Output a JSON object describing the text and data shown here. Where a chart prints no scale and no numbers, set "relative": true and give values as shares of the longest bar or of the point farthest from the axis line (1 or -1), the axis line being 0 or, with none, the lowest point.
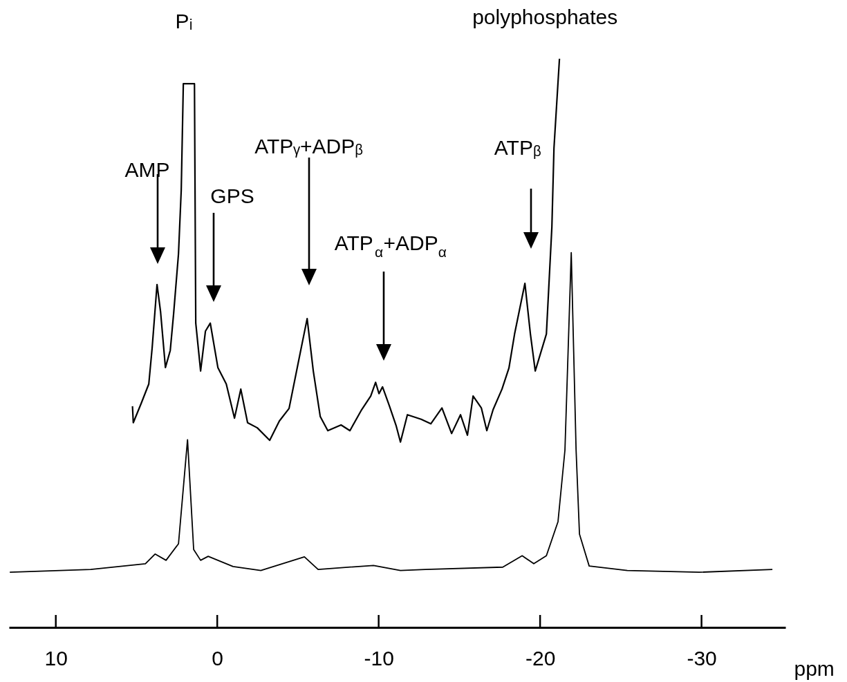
{
  "chart_data": {
    "type": "line",
    "relative": true,
    "xlabel": "ppm",
    "xlim": [
      12.9,
      -35.2
    ],
    "xticks": [
      10,
      0,
      -10,
      -20,
      -30
    ],
    "grid": false,
    "marker": "none",
    "line_style": "solid",
    "series": [
      {
        "color": "#000000",
        "x": [
          5.25,
          5.2,
          4.71,
          4.24,
          4.03,
          3.73,
          3.51,
          3.21,
          2.91,
          2.7,
          2.4,
          2.23,
          2.1,
          1.78,
          1.41,
          1.33,
          1.03,
          0.73,
          0.43,
          -0.04,
          -0.56,
          -1.07,
          -1.46,
          -1.88,
          -2.48,
          -3.25,
          -3.85,
          -4.45,
          -5.05,
          -5.57,
          -5.95,
          -6.38,
          -6.85,
          -7.67,
          -8.22,
          -8.95,
          -9.51,
          -9.81,
          -10.02,
          -10.24,
          -10.66,
          -11.09,
          -11.35,
          -11.78,
          -12.63,
          -13.23,
          -13.92,
          -14.52,
          -15.07,
          -15.5,
          -15.85,
          -16.36,
          -16.7,
          -17.09,
          -17.64,
          -18.07,
          -18.42,
          -19.06,
          -19.4,
          -19.7,
          -20.39,
          -20.73,
          -20.86,
          -21.2
        ],
        "values": [
          0.389,
          0.36,
          0.394,
          0.428,
          0.492,
          0.603,
          0.555,
          0.457,
          0.487,
          0.552,
          0.657,
          0.769,
          0.956,
          0.956,
          0.956,
          0.535,
          0.451,
          0.521,
          0.535,
          0.457,
          0.428,
          0.368,
          0.419,
          0.36,
          0.351,
          0.329,
          0.363,
          0.385,
          0.47,
          0.543,
          0.451,
          0.371,
          0.346,
          0.356,
          0.346,
          0.383,
          0.407,
          0.431,
          0.411,
          0.423,
          0.39,
          0.354,
          0.326,
          0.374,
          0.366,
          0.358,
          0.386,
          0.341,
          0.374,
          0.338,
          0.407,
          0.386,
          0.346,
          0.383,
          0.419,
          0.456,
          0.516,
          0.605,
          0.516,
          0.451,
          0.516,
          0.704,
          0.843,
          1.0
        ]
      },
      {
        "color": "#000000",
        "x": [
          12.85,
          7.84,
          4.45,
          3.85,
          3.17,
          2.4,
          1.84,
          1.46,
          1.03,
          0.56,
          -0.98,
          -2.7,
          -5.4,
          -6.25,
          -9.68,
          -11.35,
          -12.89,
          -17.69,
          -18.89,
          -19.61,
          -20.39,
          -21.11,
          -21.54,
          -21.93,
          -22.23,
          -22.44,
          -23.04,
          -25.4,
          -29.85,
          -34.39
        ],
        "values": [
          0.097,
          0.102,
          0.112,
          0.129,
          0.118,
          0.147,
          0.33,
          0.137,
          0.118,
          0.125,
          0.107,
          0.1,
          0.124,
          0.102,
          0.109,
          0.1,
          0.102,
          0.106,
          0.126,
          0.112,
          0.126,
          0.186,
          0.312,
          0.659,
          0.312,
          0.164,
          0.108,
          0.1,
          0.097,
          0.102
        ]
      }
    ],
    "annotations": [
      {
        "text": "Pᵢ",
        "x": 1.78,
        "y": 0.956
      },
      {
        "text": "polyphosphates",
        "x": -21.2,
        "y": 1.0
      },
      "AMP",
      "GPS",
      "ATPᵧ+ADPᵦ",
      "ATP$_{α}$+ADP$_{α}$",
      "ATPᵦ"
    ]
  }
}
